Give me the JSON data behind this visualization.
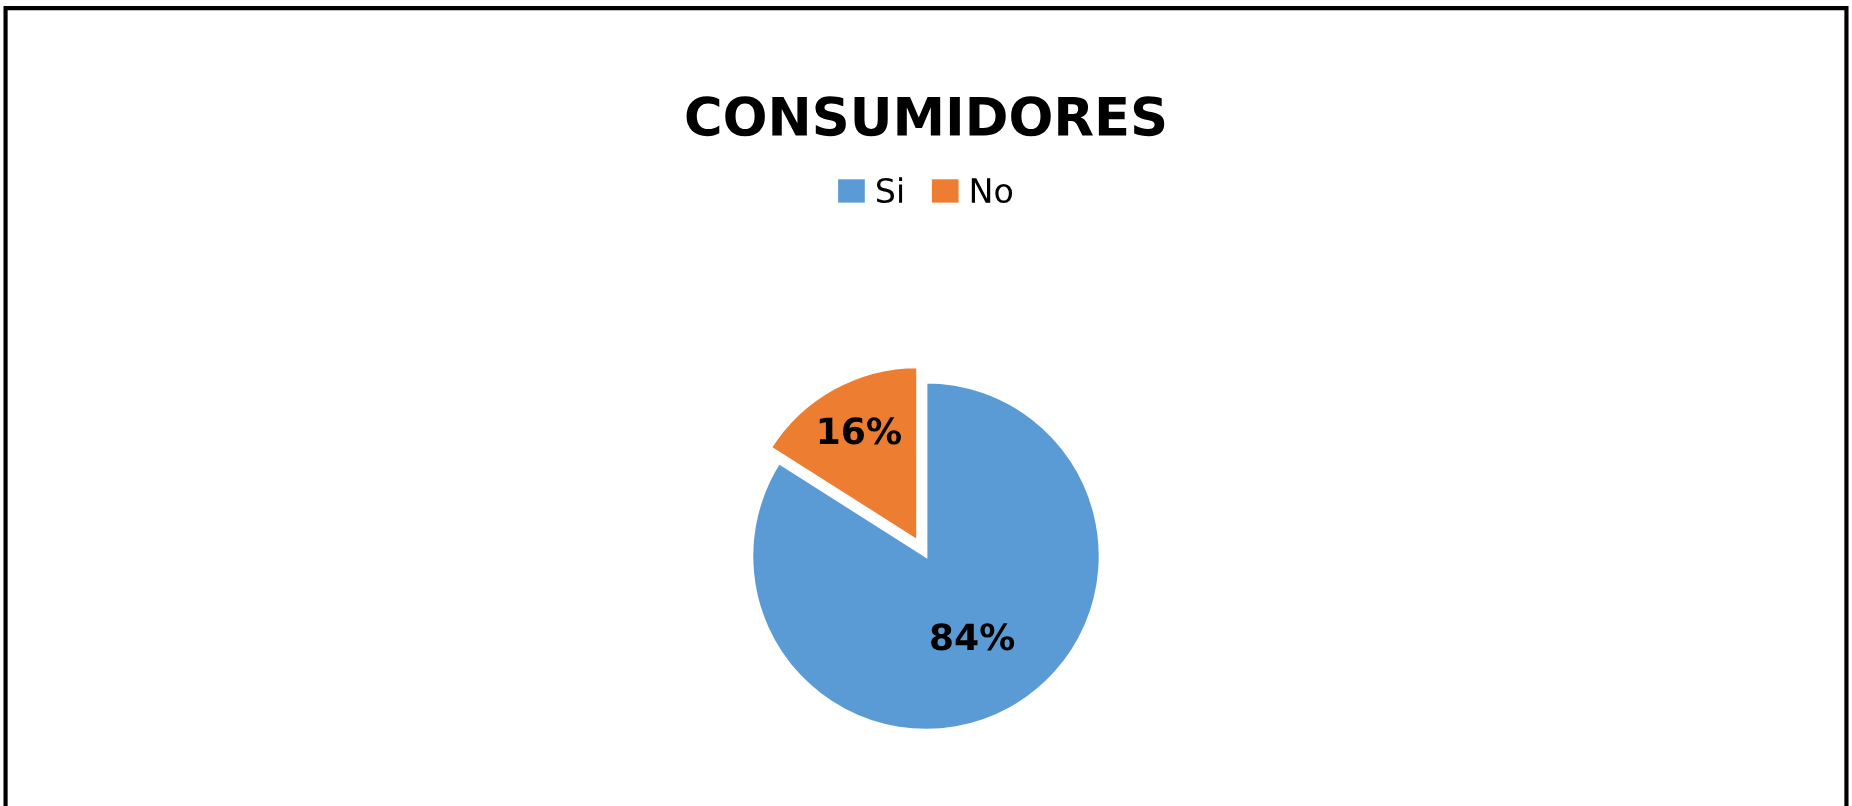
{
  "chart_data": {
    "type": "pie",
    "title": "CONSUMIDORES",
    "categories": [
      "Si",
      "No"
    ],
    "values": [
      84,
      16
    ],
    "colors": [
      "#5b9bd5",
      "#ed7d31"
    ],
    "value_labels": [
      "84%",
      "16%"
    ],
    "legend": "top"
  }
}
